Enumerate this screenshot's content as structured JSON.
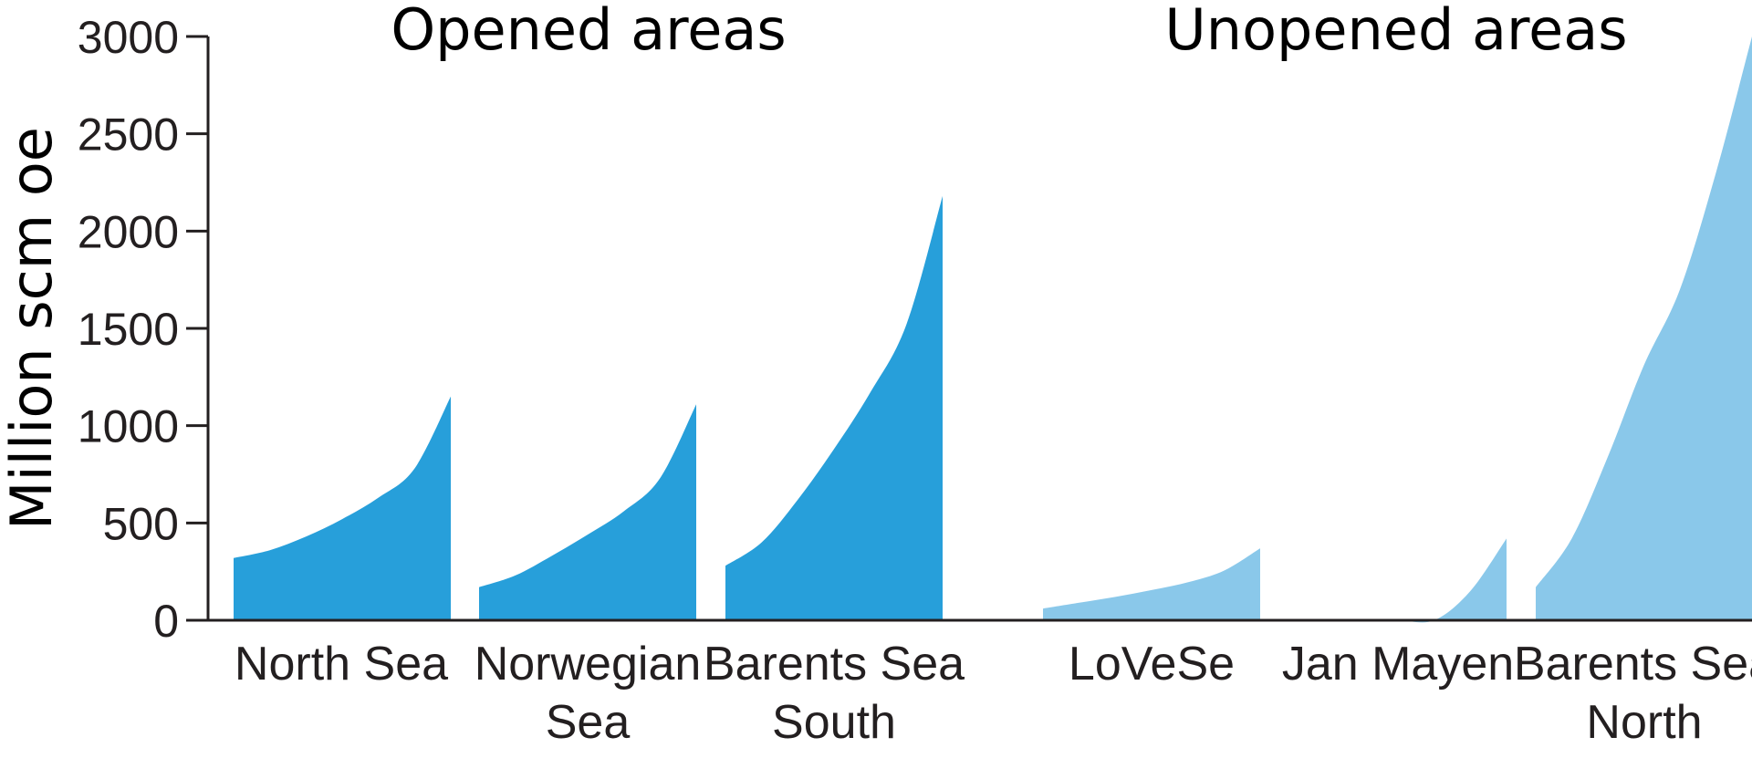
{
  "chart_data": {
    "type": "area",
    "ylabel": "Million scm oe",
    "ylim": [
      0,
      3000
    ],
    "y_ticks": [
      "0",
      "500",
      "1000",
      "1500",
      "2000",
      "2500",
      "3000"
    ],
    "groups": [
      {
        "title": "Opened areas",
        "color": "#279fda"
      },
      {
        "title": "Unopened areas",
        "color": "#8ac8ea"
      }
    ],
    "series": [
      {
        "label_lines": [
          "North Sea"
        ],
        "group": 0,
        "values": [
          320,
          360,
          430,
          520,
          630,
          780,
          1150
        ]
      },
      {
        "label_lines": [
          "Norwegian",
          "Sea"
        ],
        "group": 0,
        "values": [
          170,
          230,
          330,
          440,
          560,
          730,
          1110
        ]
      },
      {
        "label_lines": [
          "Barents Sea",
          "South"
        ],
        "group": 0,
        "values": [
          280,
          400,
          620,
          880,
          1170,
          1520,
          2180
        ]
      },
      {
        "label_lines": [
          "LoVeSe"
        ],
        "group": 1,
        "values": [
          60,
          90,
          120,
          155,
          195,
          255,
          370
        ]
      },
      {
        "label_lines": [
          "Jan Mayen"
        ],
        "group": 1,
        "values": [
          0,
          0,
          0,
          0,
          0,
          150,
          420
        ]
      },
      {
        "label_lines": [
          "Barents Sea",
          "North"
        ],
        "group": 1,
        "values": [
          170,
          420,
          840,
          1310,
          1700,
          2300,
          3000
        ]
      }
    ]
  }
}
